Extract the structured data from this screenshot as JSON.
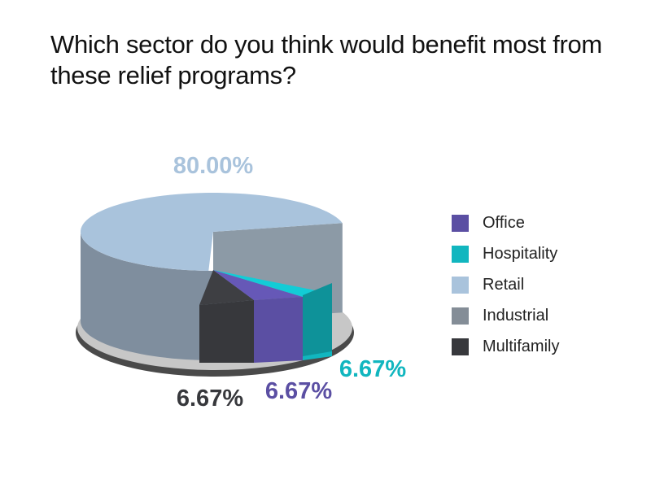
{
  "chart_data": {
    "type": "pie",
    "title": "Which sector do you think would benefit most from these relief programs?",
    "categories": [
      "Office",
      "Hospitality",
      "Retail",
      "Industrial",
      "Multifamily"
    ],
    "values": [
      6.67,
      6.67,
      80.0,
      0,
      6.67
    ],
    "value_labels": [
      "6.67%",
      "6.67%",
      "80.00%",
      "",
      "6.67%"
    ],
    "colors": {
      "Office": "#5b4fa3",
      "Hospitality": "#11b6bf",
      "Retail": "#a9c3dc",
      "Industrial": "#848d97",
      "Multifamily": "#37383c"
    },
    "style": "3d-exploded-pie",
    "legend_position": "right"
  }
}
